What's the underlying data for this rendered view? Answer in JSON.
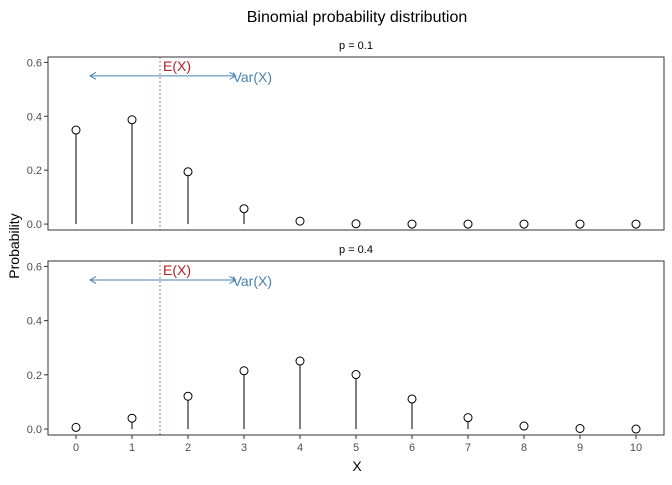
{
  "chart_data": {
    "type": "scatter",
    "title": "Binomial probability distribution",
    "xlabel": "X",
    "ylabel": "Probability",
    "x": [
      0,
      1,
      2,
      3,
      4,
      5,
      6,
      7,
      8,
      9,
      10
    ],
    "xticks": [
      "0",
      "1",
      "2",
      "3",
      "4",
      "5",
      "6",
      "7",
      "8",
      "9",
      "10"
    ],
    "ylim": [
      0,
      0.62
    ],
    "yticks": [
      "0.0",
      "0.2",
      "0.4",
      "0.6"
    ],
    "ytick_values": [
      0,
      0.2,
      0.4,
      0.6
    ],
    "grid": false,
    "colors": {
      "stem": "#000000",
      "point_fill": "#ffffff",
      "mean_line": "#c0392b",
      "mean_label": "#b22222",
      "var_arrow": "#4682b4",
      "var_label": "#4682b4"
    },
    "panels": [
      {
        "strip_label": "p = 0.1",
        "values": [
          0.349,
          0.387,
          0.194,
          0.057,
          0.011,
          0.001,
          0.0,
          0.0,
          0.0,
          0.0,
          0.0
        ],
        "mean_x": 1.5,
        "mean_label": "E(X)",
        "var_arrow": {
          "from": 0.25,
          "to": 2.85,
          "y": 0.55
        },
        "var_label": "Var(X)"
      },
      {
        "strip_label": "p = 0.4",
        "values": [
          0.006,
          0.04,
          0.121,
          0.215,
          0.251,
          0.201,
          0.111,
          0.042,
          0.011,
          0.002,
          0.0
        ],
        "mean_x": 1.5,
        "mean_label": "E(X)",
        "var_arrow": {
          "from": 0.25,
          "to": 2.85,
          "y": 0.55
        },
        "var_label": "Var(X)"
      }
    ]
  }
}
